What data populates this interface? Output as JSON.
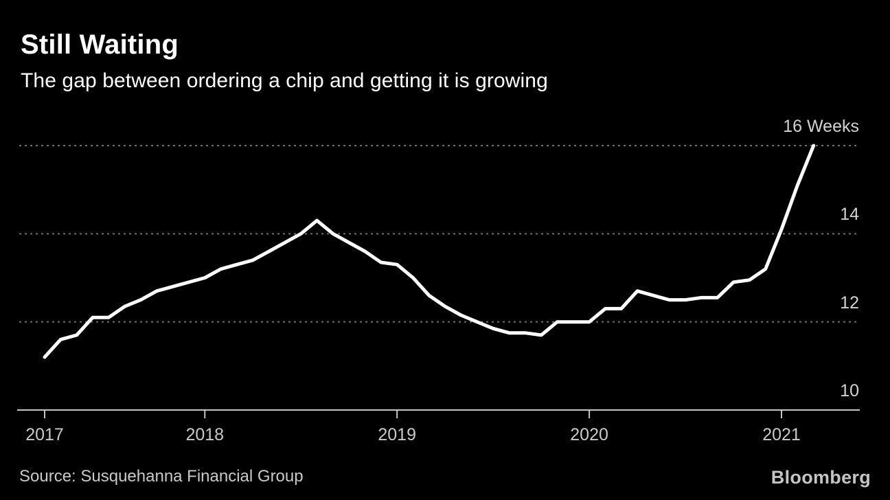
{
  "header": {
    "title": "Still Waiting",
    "subtitle": "The gap between ordering a chip and getting it is growing"
  },
  "footer": {
    "source": "Source: Susquehanna Financial Group",
    "brand": "Bloomberg"
  },
  "colors": {
    "background": "#000000",
    "line": "#ffffff",
    "gridline": "#707070",
    "axis": "#c6c6c6",
    "y_label": "#d2d2d2",
    "x_label": "#c9c9c9",
    "title": "#ffffff",
    "source_text": "#c9c9c9",
    "brand_text": "#c4c4c4"
  },
  "chart_data": {
    "type": "line",
    "title": "Still Waiting",
    "subtitle": "The gap between ordering a chip and getting it is growing",
    "xlabel": "",
    "ylabel": "Weeks",
    "unit": "Weeks",
    "frequency": "monthly",
    "ylim": [
      10,
      16.2
    ],
    "grid": "horizontal-dotted",
    "legend": "none",
    "x": [
      "2017-03",
      "2017-04",
      "2017-05",
      "2017-06",
      "2017-07",
      "2017-08",
      "2017-09",
      "2017-10",
      "2017-11",
      "2017-12",
      "2018-01",
      "2018-02",
      "2018-03",
      "2018-04",
      "2018-05",
      "2018-06",
      "2018-07",
      "2018-08",
      "2018-09",
      "2018-10",
      "2018-11",
      "2018-12",
      "2019-01",
      "2019-02",
      "2019-03",
      "2019-04",
      "2019-05",
      "2019-06",
      "2019-07",
      "2019-08",
      "2019-09",
      "2019-10",
      "2019-11",
      "2019-12",
      "2020-01",
      "2020-02",
      "2020-03",
      "2020-04",
      "2020-05",
      "2020-06",
      "2020-07",
      "2020-08",
      "2020-09",
      "2020-10",
      "2020-11",
      "2020-12",
      "2021-01",
      "2021-02",
      "2021-03"
    ],
    "series": [
      {
        "name": "chip-lead-time-weeks",
        "values": [
          11.2,
          11.6,
          11.7,
          12.1,
          12.1,
          12.35,
          12.5,
          12.7,
          12.8,
          12.9,
          13.0,
          13.2,
          13.3,
          13.4,
          13.6,
          13.8,
          14.0,
          14.3,
          14.0,
          13.8,
          13.6,
          13.35,
          13.3,
          13.0,
          12.6,
          12.35,
          12.15,
          12.0,
          11.85,
          11.75,
          11.75,
          11.7,
          12.0,
          12.0,
          12.0,
          12.3,
          12.3,
          12.7,
          12.6,
          12.5,
          12.5,
          12.55,
          12.55,
          12.9,
          12.95,
          13.2,
          14.1,
          15.1,
          16.0
        ]
      }
    ],
    "y_ticks": [
      {
        "value": 16,
        "label": "16 Weeks",
        "style": "dotted"
      },
      {
        "value": 14,
        "label": "14",
        "style": "dotted"
      },
      {
        "value": 12,
        "label": "12",
        "style": "dotted"
      },
      {
        "value": 10,
        "label": "10",
        "style": "axis"
      }
    ],
    "x_ticks": [
      {
        "label": "2017",
        "index": 0
      },
      {
        "label": "2018",
        "index": 10
      },
      {
        "label": "2019",
        "index": 22
      },
      {
        "label": "2020",
        "index": 34
      },
      {
        "label": "2021",
        "index": 46
      }
    ]
  }
}
